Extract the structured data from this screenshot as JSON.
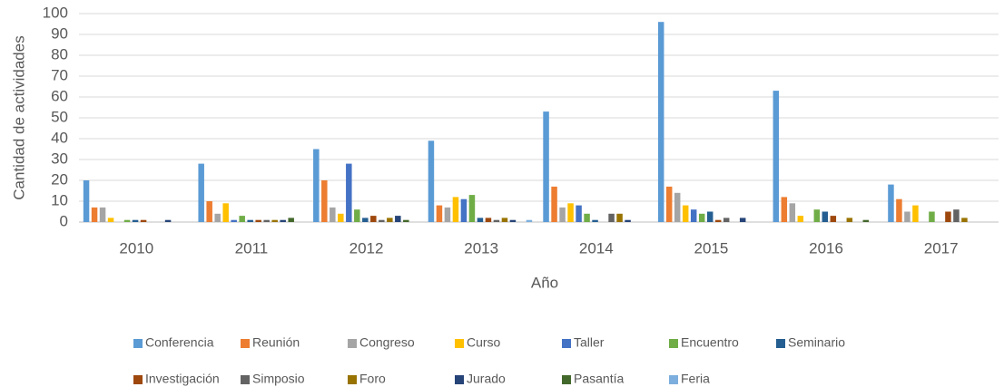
{
  "chart_data": {
    "type": "bar",
    "x_label": "Año",
    "y_label": "Cantidad de actividades",
    "categories": [
      "2010",
      "2011",
      "2012",
      "2013",
      "2014",
      "2015",
      "2016",
      "2017"
    ],
    "ylim": [
      0,
      100
    ],
    "yticks": [
      0,
      10,
      20,
      30,
      40,
      50,
      60,
      70,
      80,
      90,
      100
    ],
    "grid": true,
    "series": [
      {
        "name": "Conferencia",
        "color": "#5b9bd5",
        "values": [
          20,
          28,
          35,
          39,
          53,
          96,
          63,
          18
        ]
      },
      {
        "name": "Reunión",
        "color": "#ed7d31",
        "values": [
          7,
          10,
          20,
          8,
          17,
          17,
          12,
          11
        ]
      },
      {
        "name": "Congreso",
        "color": "#a5a5a5",
        "values": [
          7,
          4,
          7,
          7,
          7,
          14,
          9,
          5
        ]
      },
      {
        "name": "Curso",
        "color": "#ffc000",
        "values": [
          2,
          9,
          4,
          12,
          9,
          8,
          3,
          8
        ]
      },
      {
        "name": "Taller",
        "color": "#4472c4",
        "values": [
          0,
          1,
          28,
          11,
          8,
          6,
          0,
          0
        ]
      },
      {
        "name": "Encuentro",
        "color": "#70ad47",
        "values": [
          1,
          3,
          6,
          13,
          4,
          4,
          6,
          5
        ]
      },
      {
        "name": "Seminario",
        "color": "#255e91",
        "values": [
          1,
          1,
          2,
          2,
          1,
          5,
          5,
          0
        ]
      },
      {
        "name": "Investigación",
        "color": "#9e480e",
        "values": [
          1,
          1,
          3,
          2,
          0,
          1,
          3,
          5
        ]
      },
      {
        "name": "Simposio",
        "color": "#636363",
        "values": [
          0,
          1,
          1,
          1,
          4,
          2,
          0,
          6
        ]
      },
      {
        "name": "Foro",
        "color": "#997300",
        "values": [
          0,
          1,
          2,
          2,
          4,
          0,
          2,
          2
        ]
      },
      {
        "name": "Jurado",
        "color": "#264478",
        "values": [
          1,
          1,
          3,
          1,
          1,
          2,
          0,
          0
        ]
      },
      {
        "name": "Pasantía",
        "color": "#43682b",
        "values": [
          0,
          2,
          1,
          0,
          0,
          0,
          1,
          0
        ]
      },
      {
        "name": "Feria",
        "color": "#7cafdd",
        "values": [
          0,
          0,
          0,
          1,
          0,
          0,
          0,
          0
        ]
      }
    ]
  }
}
